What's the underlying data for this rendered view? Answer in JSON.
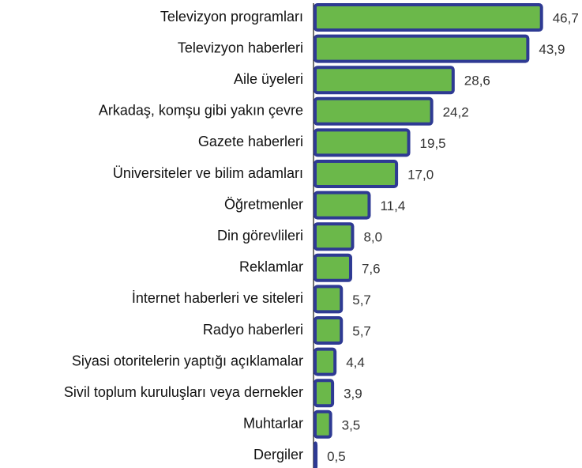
{
  "chart_data": {
    "type": "bar",
    "orientation": "horizontal",
    "categories": [
      "Televizyon programları",
      "Televizyon haberleri",
      "Aile üyeleri",
      "Arkadaş, komşu gibi yakın çevre",
      "Gazete haberleri",
      "Üniversiteler ve bilim adamları",
      "Öğretmenler",
      "Din görevlileri",
      "Reklamlar",
      "İnternet haberleri ve siteleri",
      "Radyo haberleri",
      "Siyasi otoritelerin yaptığı açıklamalar",
      "Sivil toplum kuruluşları veya dernekler",
      "Muhtarlar",
      "Dergiler"
    ],
    "values": [
      46.7,
      43.9,
      28.6,
      24.2,
      19.5,
      17.0,
      11.4,
      8.0,
      7.6,
      5.7,
      5.7,
      4.4,
      3.9,
      3.5,
      0.5
    ],
    "value_labels": [
      "46,7",
      "43,9",
      "28,6",
      "24,2",
      "19,5",
      "17,0",
      "11,4",
      "8,0",
      "7,6",
      "5,7",
      "5,7",
      "4,4",
      "3,9",
      "3,5",
      "0,5"
    ],
    "color": "#6bb84a",
    "edge_color": "#2e3a93",
    "xlim": [
      0,
      55
    ]
  }
}
